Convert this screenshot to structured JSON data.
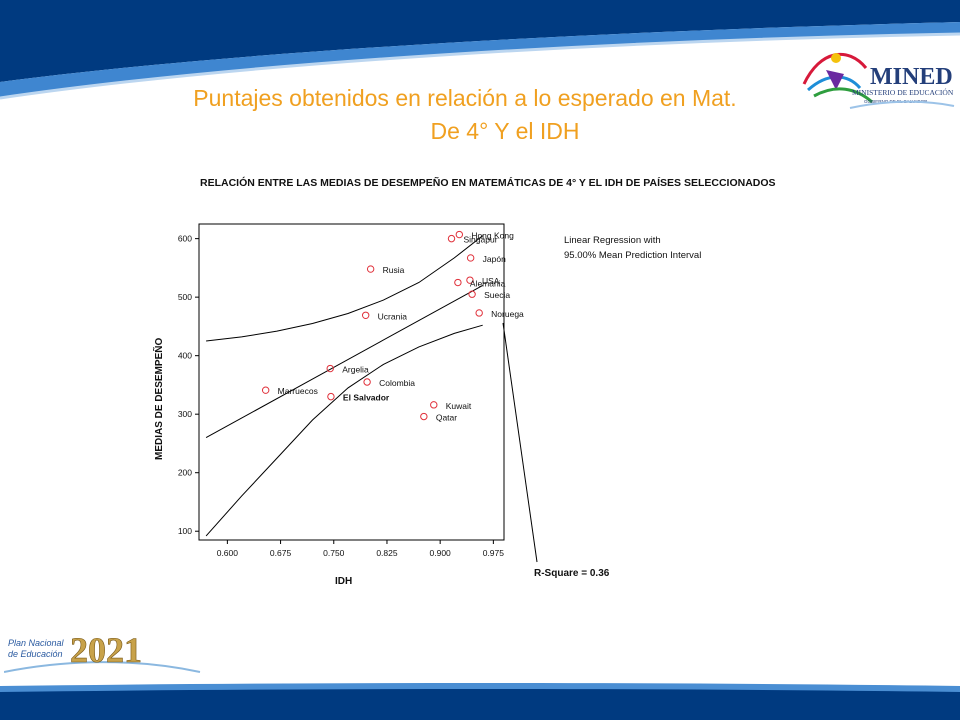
{
  "slide": {
    "title_line1": "Puntajes obtenidos en relación a lo esperado en Mat.",
    "title_line2": "De 4° Y el IDH",
    "logo_text": "MINED",
    "logo_subtext": "MINISTERIO DE EDUCACIÓN",
    "logo_tagline": "GOBIERNO DE EL SALVADOR",
    "plan_text_line1": "Plan Nacional",
    "plan_text_line2": "de Educación",
    "plan_year": "2021",
    "colors": {
      "navy": "#003a80",
      "band": "#1d66b5",
      "title": "#f0a020"
    }
  },
  "chart_data": {
    "type": "scatter",
    "title": "RELACIÓN ENTRE LAS MEDIAS DE DESEMPEÑO EN MATEMÁTICAS DE 4°  Y EL IDH DE PAÍSES SELECCIONADOS",
    "xlabel": "IDH",
    "ylabel": "MEDIAS DE DESEMPEÑO",
    "xlim": [
      0.56,
      0.99
    ],
    "ylim": [
      85,
      625
    ],
    "xticks": [
      0.6,
      0.675,
      0.75,
      0.825,
      0.9,
      0.975
    ],
    "xtick_labels": [
      "0.600",
      "0.675",
      "0.750",
      "0.825",
      "0.900",
      "0.975"
    ],
    "yticks": [
      100,
      200,
      300,
      400,
      500,
      600
    ],
    "ytick_labels": [
      "100",
      "200",
      "300",
      "400",
      "500",
      "600"
    ],
    "legend": [
      "Linear Regression with",
      "95.00% Mean Prediction Interval"
    ],
    "annotation": "R-Square = 0.36",
    "points": [
      {
        "label": "Hong Kong",
        "x": 0.927,
        "y": 607
      },
      {
        "label": "Singapur",
        "x": 0.916,
        "y": 600
      },
      {
        "label": "Japón",
        "x": 0.943,
        "y": 567
      },
      {
        "label": "Rusia",
        "x": 0.802,
        "y": 548
      },
      {
        "label": "USA",
        "x": 0.942,
        "y": 529
      },
      {
        "label": "Alemania",
        "x": 0.925,
        "y": 525
      },
      {
        "label": "Suecia",
        "x": 0.945,
        "y": 505
      },
      {
        "label": "Noruega",
        "x": 0.955,
        "y": 473
      },
      {
        "label": "Ucrania",
        "x": 0.795,
        "y": 469
      },
      {
        "label": "Argelia",
        "x": 0.745,
        "y": 378
      },
      {
        "label": "Colombia",
        "x": 0.797,
        "y": 355
      },
      {
        "label": "Marruecos",
        "x": 0.654,
        "y": 341
      },
      {
        "label": "El Salvador",
        "x": 0.746,
        "y": 330
      },
      {
        "label": "Kuwait",
        "x": 0.891,
        "y": 316
      },
      {
        "label": "Qatar",
        "x": 0.877,
        "y": 296
      }
    ],
    "regression": {
      "x": [
        0.57,
        0.96
      ],
      "y": [
        260,
        520
      ]
    },
    "upper_band": {
      "x": [
        0.57,
        0.62,
        0.67,
        0.72,
        0.77,
        0.82,
        0.87,
        0.92,
        0.96
      ],
      "y": [
        425,
        432,
        442,
        455,
        472,
        495,
        525,
        567,
        605
      ]
    },
    "lower_band": {
      "x": [
        0.57,
        0.62,
        0.67,
        0.72,
        0.77,
        0.82,
        0.87,
        0.92,
        0.96
      ],
      "y": [
        92,
        160,
        225,
        290,
        345,
        385,
        415,
        438,
        452
      ]
    }
  }
}
